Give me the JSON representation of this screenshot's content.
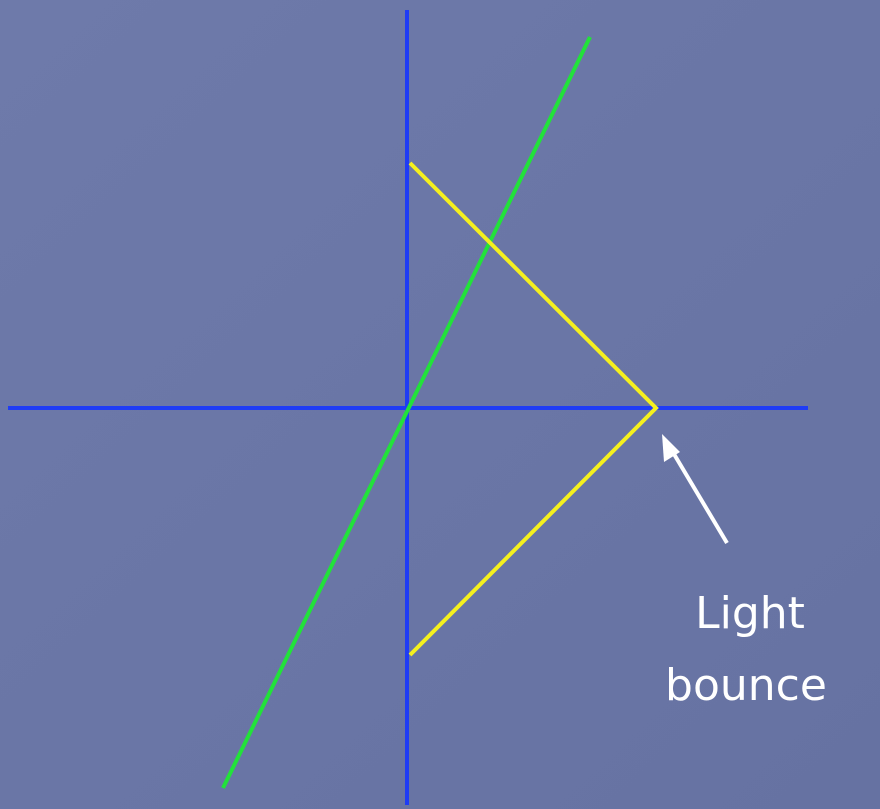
{
  "annotation": {
    "lines": [
      "Light",
      "bounce"
    ]
  }
}
